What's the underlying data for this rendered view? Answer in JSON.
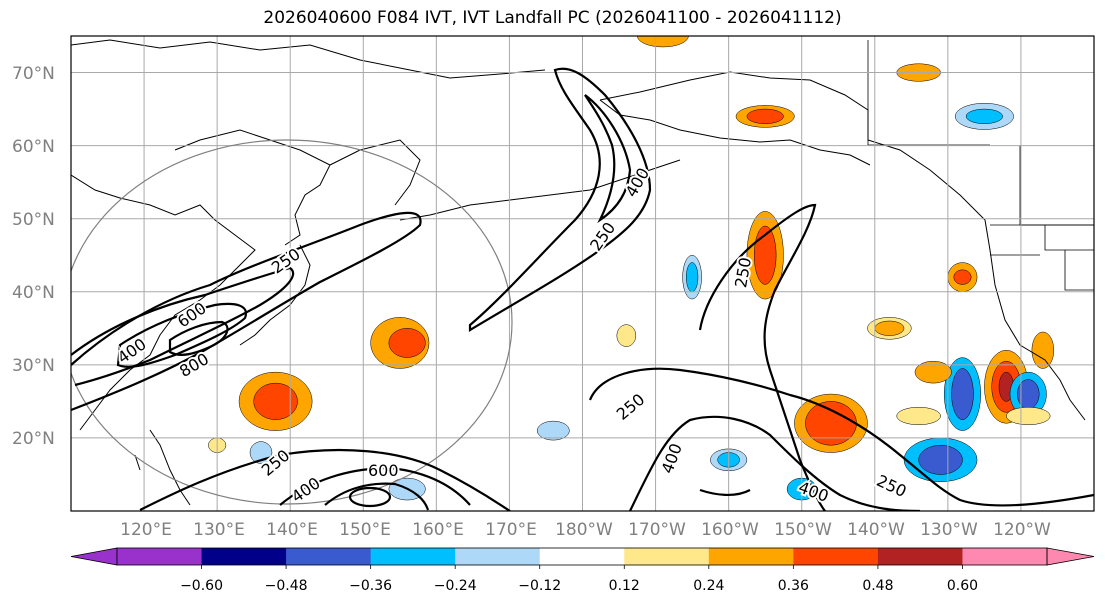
{
  "title": "2026040600 F084 IVT, IVT Landfall PC (2026041100 - 2026041112)",
  "map": {
    "lon_range": [
      110,
      250
    ],
    "lat_range": [
      10,
      75
    ],
    "lat_labels": [
      "70°N",
      "60°N",
      "50°N",
      "40°N",
      "30°N",
      "20°N"
    ],
    "lon_labels": [
      "120°E",
      "130°E",
      "140°E",
      "150°E",
      "160°E",
      "170°E",
      "180°W",
      "170°W",
      "160°W",
      "150°W",
      "140°W",
      "130°W",
      "120°W"
    ]
  },
  "contours": {
    "color": "#000000",
    "labels": [
      "250",
      "400",
      "600",
      "800",
      "250",
      "400",
      "250",
      "400",
      "250",
      "600",
      "400",
      "250",
      "400",
      "250"
    ]
  },
  "colorbar": {
    "ticks": [
      "−0.60",
      "−0.48",
      "−0.36",
      "−0.24",
      "−0.12",
      "0.12",
      "0.24",
      "0.36",
      "0.48",
      "0.60"
    ],
    "colors": [
      "#9932cc",
      "#00008b",
      "#3a5bd0",
      "#00bfff",
      "#add8f7",
      "#ffffff",
      "#ffe88a",
      "#ffa500",
      "#ff4500",
      "#b22222",
      "#ff88b0",
      "#ff88b0"
    ]
  }
}
